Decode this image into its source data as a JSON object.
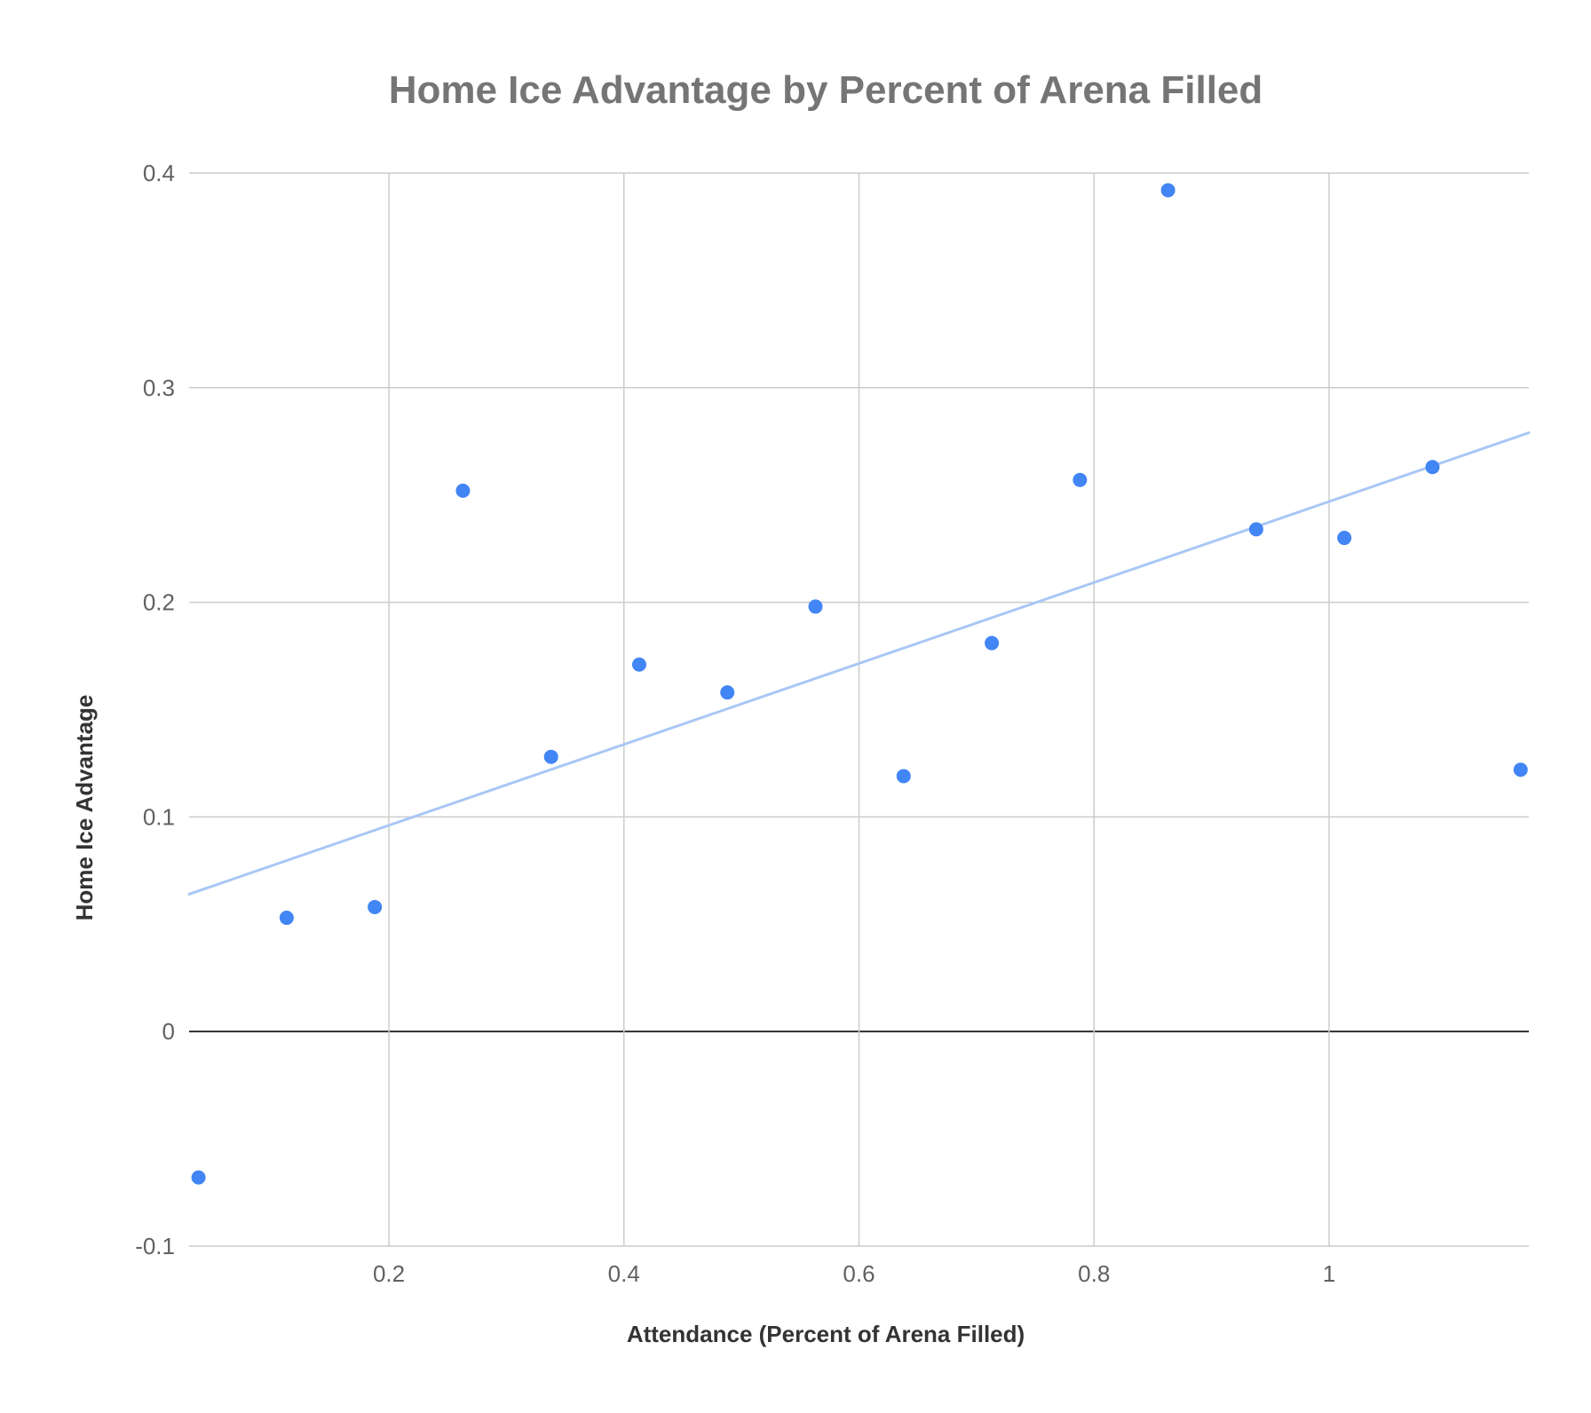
{
  "chart_data": {
    "type": "scatter",
    "title": "Home Ice Advantage by Percent of Arena Filled",
    "xlabel": "Attendance (Percent of Arena Filled)",
    "ylabel": "Home Ice Advantage",
    "xlim": [
      0.03,
      1.17
    ],
    "ylim": [
      -0.1,
      0.4
    ],
    "x_ticks": [
      {
        "value": 0.2,
        "label": "0.2"
      },
      {
        "value": 0.4,
        "label": "0.4"
      },
      {
        "value": 0.6,
        "label": "0.6"
      },
      {
        "value": 0.8,
        "label": "0.8"
      },
      {
        "value": 1.0,
        "label": "1"
      }
    ],
    "y_ticks": [
      {
        "value": -0.1,
        "label": "-0.1"
      },
      {
        "value": 0.0,
        "label": "0"
      },
      {
        "value": 0.1,
        "label": "0.1"
      },
      {
        "value": 0.2,
        "label": "0.2"
      },
      {
        "value": 0.3,
        "label": "0.3"
      },
      {
        "value": 0.4,
        "label": "0.4"
      }
    ],
    "grid": true,
    "legend": "none",
    "series": [
      {
        "color": "#4285f4",
        "points": [
          {
            "x": 0.038,
            "y": -0.068
          },
          {
            "x": 0.113,
            "y": 0.053
          },
          {
            "x": 0.188,
            "y": 0.058
          },
          {
            "x": 0.263,
            "y": 0.252
          },
          {
            "x": 0.338,
            "y": 0.128
          },
          {
            "x": 0.413,
            "y": 0.171
          },
          {
            "x": 0.488,
            "y": 0.158
          },
          {
            "x": 0.563,
            "y": 0.198
          },
          {
            "x": 0.638,
            "y": 0.119
          },
          {
            "x": 0.713,
            "y": 0.181
          },
          {
            "x": 0.788,
            "y": 0.257
          },
          {
            "x": 0.863,
            "y": 0.392
          },
          {
            "x": 0.938,
            "y": 0.234
          },
          {
            "x": 1.013,
            "y": 0.23
          },
          {
            "x": 1.088,
            "y": 0.263
          },
          {
            "x": 1.163,
            "y": 0.122
          }
        ]
      }
    ],
    "trendline": {
      "type": "linear",
      "color": "#a8c7f5",
      "start": {
        "x": 0.03,
        "y": 0.064
      },
      "end": {
        "x": 1.17,
        "y": 0.279
      }
    }
  }
}
